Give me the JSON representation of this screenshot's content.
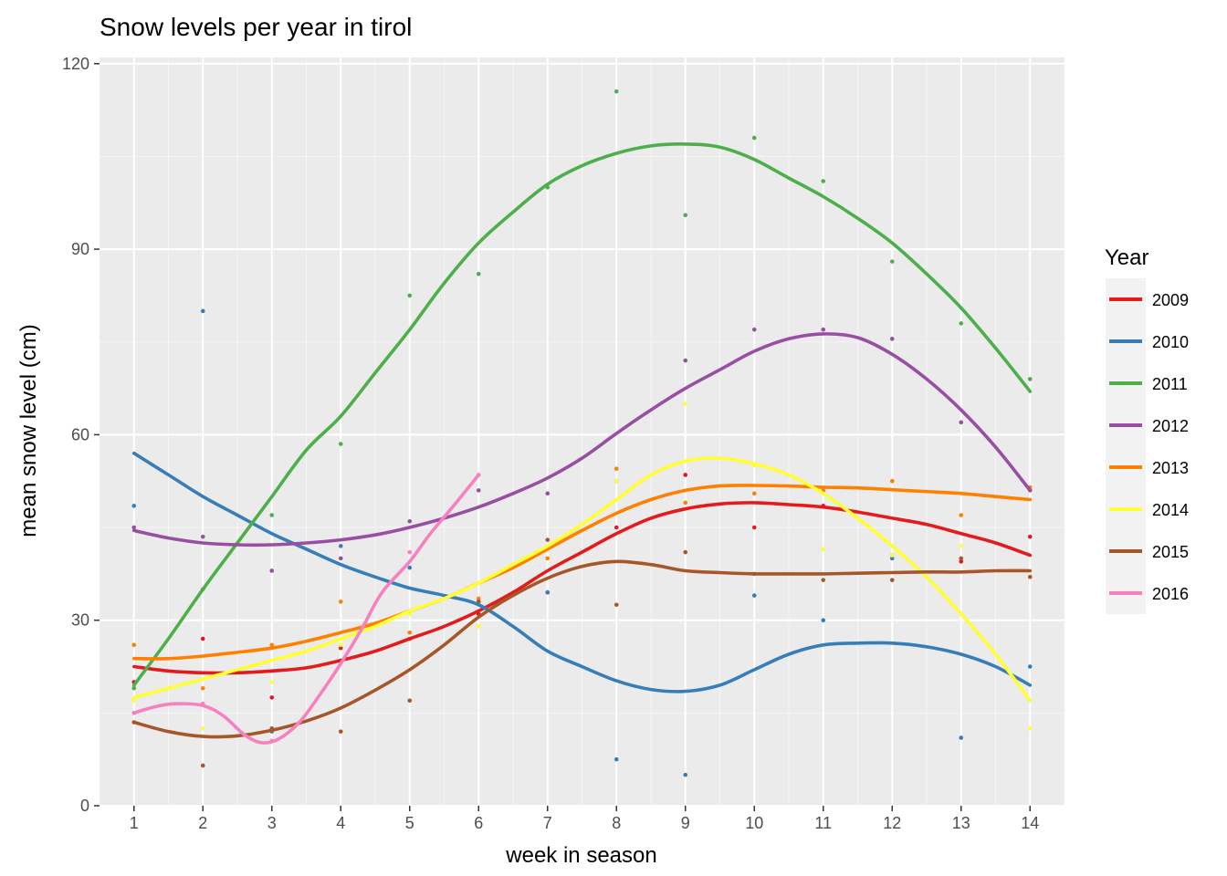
{
  "chart_data": {
    "type": "line",
    "title": "Snow levels per year in tirol",
    "xlabel": "week in season",
    "ylabel": "mean snow level (cm)",
    "xlim": [
      0.5,
      14.5
    ],
    "ylim": [
      0,
      121
    ],
    "x_ticks": [
      1,
      2,
      3,
      4,
      5,
      6,
      7,
      8,
      9,
      10,
      11,
      12,
      13,
      14
    ],
    "y_ticks": [
      0,
      30,
      60,
      90,
      120
    ],
    "grid": true,
    "legend": {
      "title": "Year",
      "placement": "right"
    },
    "series": [
      {
        "name": "2009",
        "color": "#e41a1c",
        "points": [
          [
            1,
            20
          ],
          [
            2,
            27
          ],
          [
            3,
            17.5
          ],
          [
            4,
            25.5
          ],
          [
            5,
            27
          ],
          [
            6,
            31
          ],
          [
            7,
            34.5
          ],
          [
            8,
            45
          ],
          [
            9,
            53.5
          ],
          [
            10,
            45
          ],
          [
            11,
            48.5
          ],
          [
            12,
            40.5
          ],
          [
            13,
            39.5
          ],
          [
            14,
            43.5
          ]
        ],
        "smooth": [
          [
            1,
            22.5
          ],
          [
            1.5,
            21.8
          ],
          [
            2,
            21.5
          ],
          [
            2.5,
            21.5
          ],
          [
            3,
            21.8
          ],
          [
            3.5,
            22.3
          ],
          [
            4,
            23.5
          ],
          [
            4.5,
            25
          ],
          [
            5,
            27
          ],
          [
            5.5,
            29
          ],
          [
            6,
            31.5
          ],
          [
            6.5,
            34.5
          ],
          [
            7,
            38
          ],
          [
            7.5,
            41
          ],
          [
            8,
            44
          ],
          [
            8.5,
            46.5
          ],
          [
            9,
            48
          ],
          [
            9.5,
            48.8
          ],
          [
            10,
            49
          ],
          [
            10.5,
            48.7
          ],
          [
            11,
            48.3
          ],
          [
            11.5,
            47.5
          ],
          [
            12,
            46.5
          ],
          [
            12.5,
            45.5
          ],
          [
            13,
            44
          ],
          [
            13.5,
            42.5
          ],
          [
            14,
            40.5
          ]
        ]
      },
      {
        "name": "2010",
        "color": "#377eb8",
        "points": [
          [
            1,
            48.5
          ],
          [
            2,
            80
          ],
          [
            3,
            12
          ],
          [
            4,
            42
          ],
          [
            5,
            38.5
          ],
          [
            6,
            33
          ],
          [
            7,
            34.5
          ],
          [
            8,
            7.5
          ],
          [
            9,
            5
          ],
          [
            10,
            34
          ],
          [
            11,
            30
          ],
          [
            12,
            40
          ],
          [
            13,
            11
          ],
          [
            14,
            22.5
          ]
        ],
        "smooth": [
          [
            1,
            57
          ],
          [
            1.5,
            53.5
          ],
          [
            2,
            50
          ],
          [
            2.5,
            47
          ],
          [
            3,
            44
          ],
          [
            3.5,
            41.5
          ],
          [
            4,
            39
          ],
          [
            4.5,
            37
          ],
          [
            5,
            35.2
          ],
          [
            5.5,
            34
          ],
          [
            6,
            32.5
          ],
          [
            6.5,
            29
          ],
          [
            7,
            25
          ],
          [
            7.5,
            22.5
          ],
          [
            8,
            20.2
          ],
          [
            8.5,
            18.8
          ],
          [
            9,
            18.5
          ],
          [
            9.5,
            19.5
          ],
          [
            10,
            22
          ],
          [
            10.5,
            24.5
          ],
          [
            11,
            26
          ],
          [
            11.5,
            26.3
          ],
          [
            12,
            26.3
          ],
          [
            12.5,
            25.7
          ],
          [
            13,
            24.5
          ],
          [
            13.5,
            22.5
          ],
          [
            14,
            19.5
          ]
        ]
      },
      {
        "name": "2011",
        "color": "#4daf4a",
        "points": [
          [
            1,
            19
          ],
          [
            2,
            35
          ],
          [
            3,
            47
          ],
          [
            4,
            58.5
          ],
          [
            5,
            82.5
          ],
          [
            6,
            86
          ],
          [
            7,
            100
          ],
          [
            8,
            115.5
          ],
          [
            9,
            95.5
          ],
          [
            10,
            108
          ],
          [
            11,
            101
          ],
          [
            12,
            88
          ],
          [
            13,
            78
          ],
          [
            14,
            69
          ]
        ],
        "smooth": [
          [
            1,
            19.5
          ],
          [
            1.5,
            27
          ],
          [
            2,
            35
          ],
          [
            2.5,
            42.5
          ],
          [
            3,
            50
          ],
          [
            3.5,
            57.5
          ],
          [
            4,
            63
          ],
          [
            4.5,
            70
          ],
          [
            5,
            77
          ],
          [
            5.5,
            84.5
          ],
          [
            6,
            91
          ],
          [
            6.5,
            96
          ],
          [
            7,
            100.5
          ],
          [
            7.5,
            103.5
          ],
          [
            8,
            105.5
          ],
          [
            8.5,
            106.7
          ],
          [
            9,
            107
          ],
          [
            9.5,
            106.5
          ],
          [
            10,
            104.5
          ],
          [
            10.5,
            101.5
          ],
          [
            11,
            98.5
          ],
          [
            11.5,
            95
          ],
          [
            12,
            91
          ],
          [
            12.5,
            86
          ],
          [
            13,
            80.5
          ],
          [
            13.5,
            74
          ],
          [
            14,
            67
          ]
        ]
      },
      {
        "name": "2012",
        "color": "#984ea3",
        "points": [
          [
            1,
            45
          ],
          [
            2,
            43.5
          ],
          [
            3,
            38
          ],
          [
            4,
            40
          ],
          [
            5,
            46
          ],
          [
            6,
            51
          ],
          [
            7,
            50.5
          ],
          [
            8,
            52.5
          ],
          [
            9,
            72
          ],
          [
            10,
            77
          ],
          [
            11,
            77
          ],
          [
            12,
            75.5
          ],
          [
            13,
            62
          ],
          [
            14,
            51
          ]
        ],
        "smooth": [
          [
            1,
            44.5
          ],
          [
            1.5,
            43.3
          ],
          [
            2,
            42.5
          ],
          [
            2.5,
            42.2
          ],
          [
            3,
            42.2
          ],
          [
            3.5,
            42.5
          ],
          [
            4,
            43
          ],
          [
            4.5,
            43.8
          ],
          [
            5,
            45
          ],
          [
            5.5,
            46.5
          ],
          [
            6,
            48.3
          ],
          [
            6.5,
            50.5
          ],
          [
            7,
            53
          ],
          [
            7.5,
            56.2
          ],
          [
            8,
            60.2
          ],
          [
            8.5,
            64
          ],
          [
            9,
            67.5
          ],
          [
            9.5,
            70.5
          ],
          [
            10,
            73.5
          ],
          [
            10.5,
            75.5
          ],
          [
            11,
            76.3
          ],
          [
            11.5,
            75.7
          ],
          [
            12,
            73
          ],
          [
            12.5,
            69
          ],
          [
            13,
            64
          ],
          [
            13.5,
            58
          ],
          [
            14,
            51
          ]
        ]
      },
      {
        "name": "2013",
        "color": "#ff7f00",
        "points": [
          [
            1,
            26
          ],
          [
            2,
            19
          ],
          [
            3,
            26
          ],
          [
            4,
            33
          ],
          [
            5,
            28
          ],
          [
            6,
            33.5
          ],
          [
            7,
            40
          ],
          [
            8,
            54.5
          ],
          [
            9,
            49
          ],
          [
            10,
            50.5
          ],
          [
            11,
            51
          ],
          [
            12,
            52.5
          ],
          [
            13,
            47
          ],
          [
            14,
            51.5
          ]
        ],
        "smooth": [
          [
            1,
            23.8
          ],
          [
            1.5,
            23.8
          ],
          [
            2,
            24.2
          ],
          [
            2.5,
            24.8
          ],
          [
            3,
            25.5
          ],
          [
            3.5,
            26.6
          ],
          [
            4,
            28
          ],
          [
            4.5,
            29.5
          ],
          [
            5,
            31.5
          ],
          [
            5.5,
            33.5
          ],
          [
            6,
            36
          ],
          [
            6.5,
            38.5
          ],
          [
            7,
            41.5
          ],
          [
            7.5,
            44.5
          ],
          [
            8,
            47.3
          ],
          [
            8.5,
            49.5
          ],
          [
            9,
            51
          ],
          [
            9.5,
            51.7
          ],
          [
            10,
            51.8
          ],
          [
            10.5,
            51.7
          ],
          [
            11,
            51.5
          ],
          [
            11.5,
            51.4
          ],
          [
            12,
            51.1
          ],
          [
            12.5,
            50.8
          ],
          [
            13,
            50.5
          ],
          [
            13.5,
            50
          ],
          [
            14,
            49.5
          ]
        ]
      },
      {
        "name": "2014",
        "color": "#ffff33",
        "points": [
          [
            1,
            17
          ],
          [
            2,
            12.5
          ],
          [
            3,
            20
          ],
          [
            4,
            26
          ],
          [
            5,
            31
          ],
          [
            6,
            29
          ],
          [
            7,
            41.5
          ],
          [
            8,
            52.5
          ],
          [
            9,
            65
          ],
          [
            10,
            55
          ],
          [
            11,
            41.5
          ],
          [
            12,
            40.5
          ],
          [
            13,
            42
          ],
          [
            14,
            12.5
          ]
        ],
        "smooth": [
          [
            1,
            17.5
          ],
          [
            1.5,
            19
          ],
          [
            2,
            20.5
          ],
          [
            2.5,
            22
          ],
          [
            3,
            23.5
          ],
          [
            3.5,
            25
          ],
          [
            4,
            27
          ],
          [
            4.5,
            29
          ],
          [
            5,
            31.5
          ],
          [
            5.5,
            33.5
          ],
          [
            6,
            36
          ],
          [
            6.5,
            39
          ],
          [
            7,
            42
          ],
          [
            7.5,
            45.5
          ],
          [
            8,
            49.5
          ],
          [
            8.5,
            53.5
          ],
          [
            9,
            55.7
          ],
          [
            9.5,
            56.2
          ],
          [
            10,
            55.3
          ],
          [
            10.5,
            53.5
          ],
          [
            11,
            50.5
          ],
          [
            11.5,
            46.5
          ],
          [
            12,
            42
          ],
          [
            12.5,
            37
          ],
          [
            13,
            31
          ],
          [
            13.5,
            24.5
          ],
          [
            14,
            17
          ]
        ]
      },
      {
        "name": "2015",
        "color": "#a65628",
        "points": [
          [
            1,
            13.5
          ],
          [
            2,
            6.5
          ],
          [
            3,
            12.5
          ],
          [
            4,
            12
          ],
          [
            5,
            17
          ],
          [
            6,
            33
          ],
          [
            7,
            43
          ],
          [
            8,
            32.5
          ],
          [
            9,
            41
          ],
          [
            10,
            37.5
          ],
          [
            11,
            36.5
          ],
          [
            12,
            36.5
          ],
          [
            13,
            40
          ],
          [
            14,
            37
          ]
        ],
        "smooth": [
          [
            1,
            13.5
          ],
          [
            1.5,
            12
          ],
          [
            2,
            11.2
          ],
          [
            2.5,
            11.3
          ],
          [
            3,
            12.2
          ],
          [
            3.5,
            13.7
          ],
          [
            4,
            15.8
          ],
          [
            4.5,
            18.7
          ],
          [
            5,
            22
          ],
          [
            5.5,
            26
          ],
          [
            6,
            30.5
          ],
          [
            6.5,
            34
          ],
          [
            7,
            36.8
          ],
          [
            7.5,
            38.7
          ],
          [
            8,
            39.5
          ],
          [
            8.5,
            39
          ],
          [
            9,
            38
          ],
          [
            9.5,
            37.7
          ],
          [
            10,
            37.5
          ],
          [
            10.5,
            37.5
          ],
          [
            11,
            37.5
          ],
          [
            11.5,
            37.6
          ],
          [
            12,
            37.7
          ],
          [
            12.5,
            37.8
          ],
          [
            13,
            37.8
          ],
          [
            13.5,
            38
          ],
          [
            14,
            38
          ]
        ]
      },
      {
        "name": "2016",
        "color": "#f781bf",
        "points": [
          [
            1,
            15
          ],
          [
            2,
            16.5
          ],
          [
            3,
            10.5
          ],
          [
            4,
            23.5
          ],
          [
            5,
            41
          ],
          [
            6,
            53.5
          ]
        ],
        "smooth": [
          [
            1,
            15
          ],
          [
            1.3,
            16
          ],
          [
            1.6,
            16.5
          ],
          [
            2,
            16.2
          ],
          [
            2.3,
            14.5
          ],
          [
            2.6,
            11.5
          ],
          [
            2.85,
            10.2
          ],
          [
            3.1,
            10.8
          ],
          [
            3.4,
            13.5
          ],
          [
            3.7,
            18
          ],
          [
            4,
            23
          ],
          [
            4.3,
            28.5
          ],
          [
            4.6,
            34.5
          ],
          [
            5,
            39.5
          ],
          [
            5.3,
            44
          ],
          [
            5.6,
            48
          ],
          [
            6,
            53.5
          ]
        ]
      }
    ]
  }
}
